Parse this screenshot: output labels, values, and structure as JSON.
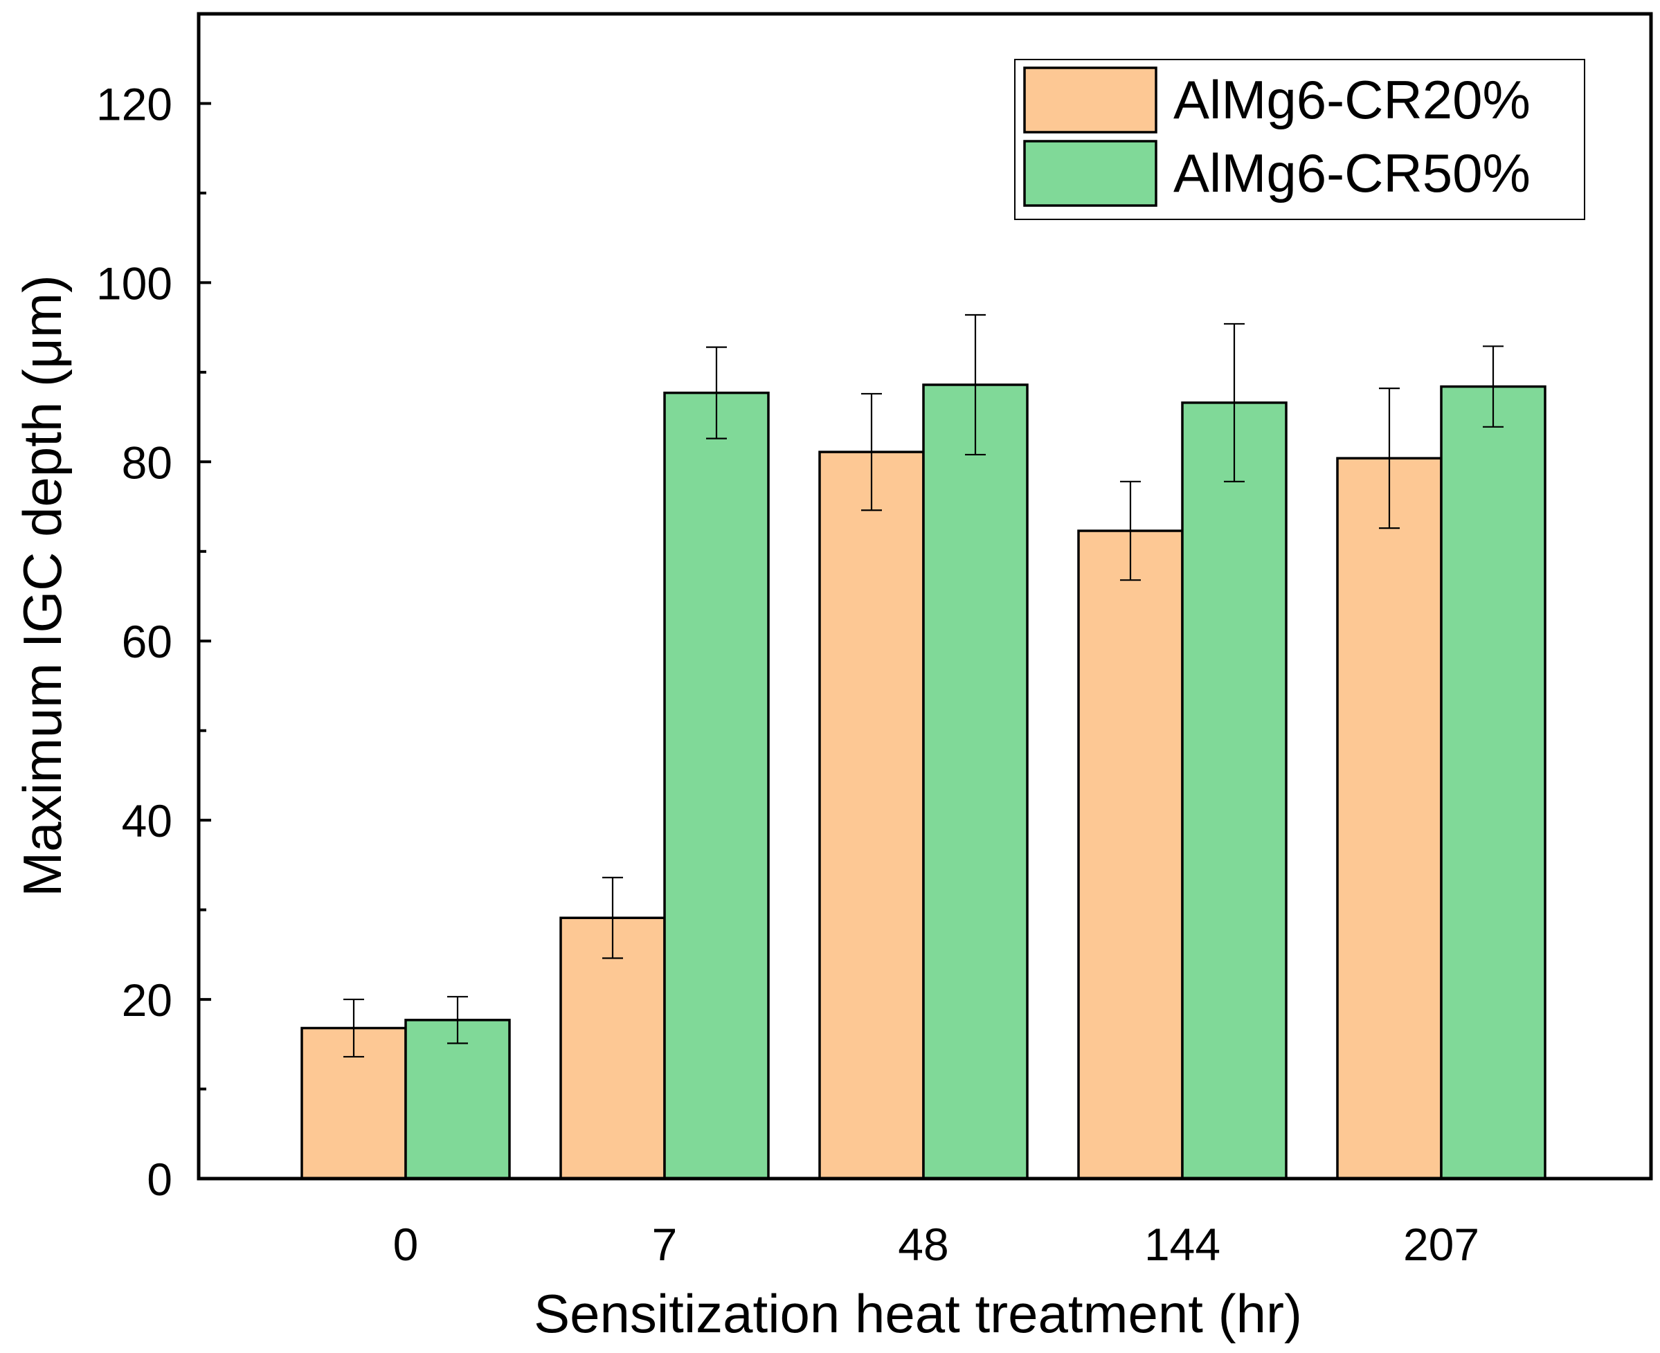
{
  "chart_data": {
    "type": "bar",
    "title": "",
    "xlabel": "Sensitization heat treatment (hr)",
    "ylabel": "Maximum IGC depth (μm)",
    "categories": [
      "0",
      "7",
      "48",
      "144",
      "207"
    ],
    "ylim": [
      0,
      130
    ],
    "yticks": [
      0,
      20,
      40,
      60,
      80,
      100,
      120
    ],
    "yminor_ticks": [
      10,
      30,
      50,
      70,
      90,
      110
    ],
    "grid": false,
    "legend_position": "top-right",
    "series": [
      {
        "name": "AlMg6-CR20%",
        "color": "#fdc894",
        "values": [
          16.8,
          29.1,
          81.1,
          72.3,
          80.4
        ],
        "errors": [
          3.2,
          4.5,
          6.5,
          5.5,
          7.8
        ]
      },
      {
        "name": "AlMg6-CR50%",
        "color": "#80d998",
        "values": [
          17.7,
          87.7,
          88.6,
          86.6,
          88.4
        ],
        "errors": [
          2.6,
          5.1,
          7.8,
          8.8,
          4.5
        ]
      }
    ]
  }
}
